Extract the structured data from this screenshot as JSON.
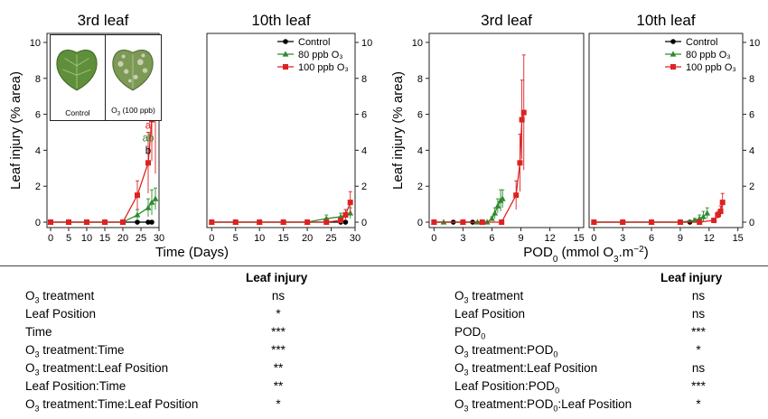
{
  "chart_data": [
    {
      "type": "line",
      "panel": "time",
      "subplot_titles": [
        "3rd leaf",
        "10th leaf"
      ],
      "xlabel": "Time (Days)",
      "ylabel": "Leaf injury (% area)",
      "xlim": [
        -1,
        30
      ],
      "ylim": [
        -0.3,
        10.5
      ],
      "xticks": [
        0,
        5,
        10,
        15,
        20,
        25,
        30
      ],
      "yticks": [
        0,
        2,
        4,
        6,
        8,
        10
      ],
      "grid": false,
      "legend_position": "top-right of right subplot",
      "legend": [
        "Control",
        "80 ppb O3",
        "100 ppb O3"
      ],
      "series": [
        {
          "name": "Control",
          "color": "#000000",
          "marker": "circle",
          "subplot": "3rd leaf",
          "points": [
            [
              0,
              0
            ],
            [
              5,
              0
            ],
            [
              10,
              0
            ],
            [
              15,
              0
            ],
            [
              20,
              0
            ],
            [
              24,
              0
            ],
            [
              27,
              0
            ],
            [
              28,
              0
            ]
          ]
        },
        {
          "name": "80 ppb O3",
          "color": "#2e8b2e",
          "marker": "triangle",
          "subplot": "3rd leaf",
          "points": [
            [
              0,
              0
            ],
            [
              5,
              0
            ],
            [
              10,
              0
            ],
            [
              15,
              0
            ],
            [
              20,
              0
            ],
            [
              24,
              0.4
            ],
            [
              27,
              0.8
            ],
            [
              28,
              1.1
            ],
            [
              29,
              1.3
            ]
          ],
          "errors": [
            0,
            0,
            0,
            0,
            0,
            0.3,
            0.5,
            0.7,
            0.6
          ]
        },
        {
          "name": "100 ppb O3",
          "color": "#dd2222",
          "marker": "square",
          "subplot": "3rd leaf",
          "points": [
            [
              0,
              0
            ],
            [
              5,
              0
            ],
            [
              10,
              0
            ],
            [
              15,
              0
            ],
            [
              20,
              0
            ],
            [
              24,
              1.5
            ],
            [
              27,
              3.3
            ],
            [
              28,
              5.7
            ],
            [
              29,
              6.1
            ]
          ],
          "errors": [
            0,
            0,
            0,
            0,
            0,
            0.8,
            1.7,
            2.3,
            3.4
          ]
        },
        {
          "name": "Control",
          "color": "#000000",
          "marker": "circle",
          "subplot": "10th leaf",
          "points": [
            [
              0,
              0
            ],
            [
              5,
              0
            ],
            [
              10,
              0
            ],
            [
              15,
              0
            ],
            [
              20,
              0
            ],
            [
              24,
              0
            ],
            [
              27,
              0
            ],
            [
              28,
              0
            ]
          ]
        },
        {
          "name": "80 ppb O3",
          "color": "#2e8b2e",
          "marker": "triangle",
          "subplot": "10th leaf",
          "points": [
            [
              0,
              0
            ],
            [
              5,
              0
            ],
            [
              10,
              0
            ],
            [
              15,
              0
            ],
            [
              20,
              0
            ],
            [
              24,
              0.2
            ],
            [
              27,
              0.3
            ],
            [
              28,
              0.4
            ],
            [
              29,
              0.5
            ]
          ],
          "errors": [
            0,
            0,
            0,
            0,
            0,
            0.2,
            0.2,
            0.3,
            0.3
          ]
        },
        {
          "name": "100 ppb O3",
          "color": "#dd2222",
          "marker": "square",
          "subplot": "10th leaf",
          "points": [
            [
              0,
              0
            ],
            [
              5,
              0
            ],
            [
              10,
              0
            ],
            [
              15,
              0
            ],
            [
              20,
              0
            ],
            [
              24,
              0
            ],
            [
              27,
              0.1
            ],
            [
              28,
              0.4
            ],
            [
              29,
              1.1
            ]
          ],
          "errors": [
            0,
            0,
            0,
            0,
            0,
            0,
            0.1,
            0.3,
            0.6
          ]
        }
      ],
      "annotations": [
        {
          "day": 27,
          "letters": [
            {
              "text": "a",
              "color": "#dd2222"
            },
            {
              "text": "ab",
              "color": "#2e8b2e"
            },
            {
              "text": "b",
              "color": "#000000"
            }
          ]
        },
        {
          "day": 28,
          "letters": [
            {
              "text": "a",
              "color": "#dd2222"
            },
            {
              "text": "b",
              "color": "#2e8b2e"
            },
            {
              "text": "b",
              "color": "#000000"
            }
          ]
        },
        {
          "day": 29,
          "letters": [
            {
              "text": "a",
              "color": "#dd2222"
            },
            {
              "text": "b",
              "color": "#2e8b2e"
            },
            {
              "text": "b",
              "color": "#000000"
            }
          ]
        }
      ],
      "inset": {
        "left_caption": "Control",
        "right_caption": "O3 (100 ppb)"
      }
    },
    {
      "type": "line",
      "panel": "pod",
      "subplot_titles": [
        "3rd leaf",
        "10th leaf"
      ],
      "xlabel": "POD0 (mmol O3.m^-2)",
      "ylabel": "Leaf injury (% area)",
      "xlim": [
        -0.5,
        15.5
      ],
      "ylim": [
        -0.3,
        10.5
      ],
      "xticks": [
        0,
        3,
        6,
        9,
        12,
        15
      ],
      "yticks": [
        0,
        2,
        4,
        6,
        8,
        10
      ],
      "grid": false,
      "legend_position": "top-right of right subplot",
      "legend": [
        "Control",
        "80 ppb O3",
        "100 ppb O3"
      ],
      "series": [
        {
          "name": "Control",
          "color": "#000000",
          "marker": "circle",
          "subplot": "3rd leaf",
          "points": [
            [
              0,
              0
            ],
            [
              2,
              0
            ],
            [
              3,
              0
            ],
            [
              4,
              0
            ],
            [
              5,
              0
            ]
          ]
        },
        {
          "name": "80 ppb O3",
          "color": "#2e8b2e",
          "marker": "triangle",
          "subplot": "3rd leaf",
          "points": [
            [
              0,
              0
            ],
            [
              1,
              0
            ],
            [
              3,
              0
            ],
            [
              4.5,
              0
            ],
            [
              5.5,
              0
            ],
            [
              6,
              0.2
            ],
            [
              6.3,
              0.5
            ],
            [
              6.6,
              0.9
            ],
            [
              6.9,
              1.2
            ],
            [
              7.1,
              1.3
            ]
          ],
          "errors": [
            0,
            0,
            0,
            0,
            0,
            0.1,
            0.3,
            0.4,
            0.6,
            0.5
          ]
        },
        {
          "name": "100 ppb O3",
          "color": "#dd2222",
          "marker": "square",
          "subplot": "3rd leaf",
          "points": [
            [
              0,
              0
            ],
            [
              3,
              0
            ],
            [
              5,
              0
            ],
            [
              7,
              0
            ],
            [
              8.5,
              1.5
            ],
            [
              8.9,
              3.3
            ],
            [
              9.1,
              5.7
            ],
            [
              9.3,
              6.1
            ]
          ],
          "errors": [
            0,
            0,
            0,
            0,
            0.8,
            1.6,
            2.2,
            3.2
          ]
        },
        {
          "name": "Control",
          "color": "#000000",
          "marker": "circle",
          "subplot": "10th leaf",
          "points": [
            [
              0,
              0
            ],
            [
              3,
              0
            ],
            [
              6,
              0
            ],
            [
              9,
              0
            ],
            [
              10,
              0
            ]
          ]
        },
        {
          "name": "80 ppb O3",
          "color": "#2e8b2e",
          "marker": "triangle",
          "subplot": "10th leaf",
          "points": [
            [
              0,
              0
            ],
            [
              3,
              0
            ],
            [
              6,
              0
            ],
            [
              9,
              0
            ],
            [
              10.5,
              0.1
            ],
            [
              11,
              0.2
            ],
            [
              11.4,
              0.3
            ],
            [
              11.8,
              0.5
            ]
          ],
          "errors": [
            0,
            0,
            0,
            0,
            0.1,
            0.2,
            0.3,
            0.3
          ]
        },
        {
          "name": "100 ppb O3",
          "color": "#dd2222",
          "marker": "square",
          "subplot": "10th leaf",
          "points": [
            [
              0,
              0
            ],
            [
              3,
              0
            ],
            [
              6,
              0
            ],
            [
              9,
              0
            ],
            [
              11,
              0
            ],
            [
              12.5,
              0.1
            ],
            [
              12.9,
              0.4
            ],
            [
              13.2,
              0.6
            ],
            [
              13.4,
              1.1
            ]
          ],
          "errors": [
            0,
            0,
            0,
            0,
            0,
            0.1,
            0.2,
            0.3,
            0.5
          ]
        }
      ]
    }
  ],
  "stats_table_left": {
    "header": "Leaf injury",
    "rows": [
      {
        "label": "O3 treatment",
        "sig": "ns"
      },
      {
        "label": "Leaf Position",
        "sig": "*"
      },
      {
        "label": "Time",
        "sig": "***"
      },
      {
        "label": "O3 treatment:Time",
        "sig": "***"
      },
      {
        "label": "O3 treatment:Leaf Position",
        "sig": "**"
      },
      {
        "label": "Leaf Position:Time",
        "sig": "**"
      },
      {
        "label": "O3 treatment:Time:Leaf Position",
        "sig": "*"
      }
    ]
  },
  "stats_table_right": {
    "header": "Leaf injury",
    "rows": [
      {
        "label": "O3 treatment",
        "sig": "ns"
      },
      {
        "label": "Leaf Position",
        "sig": "ns"
      },
      {
        "label": "POD0",
        "sig": "***"
      },
      {
        "label": "O3 treatment:POD0",
        "sig": "*"
      },
      {
        "label": "O3 treatment:Leaf Position",
        "sig": "ns"
      },
      {
        "label": "Leaf Position:POD0",
        "sig": "***"
      },
      {
        "label": "O3 treatment:POD0:Leaf Position",
        "sig": "*"
      }
    ]
  }
}
